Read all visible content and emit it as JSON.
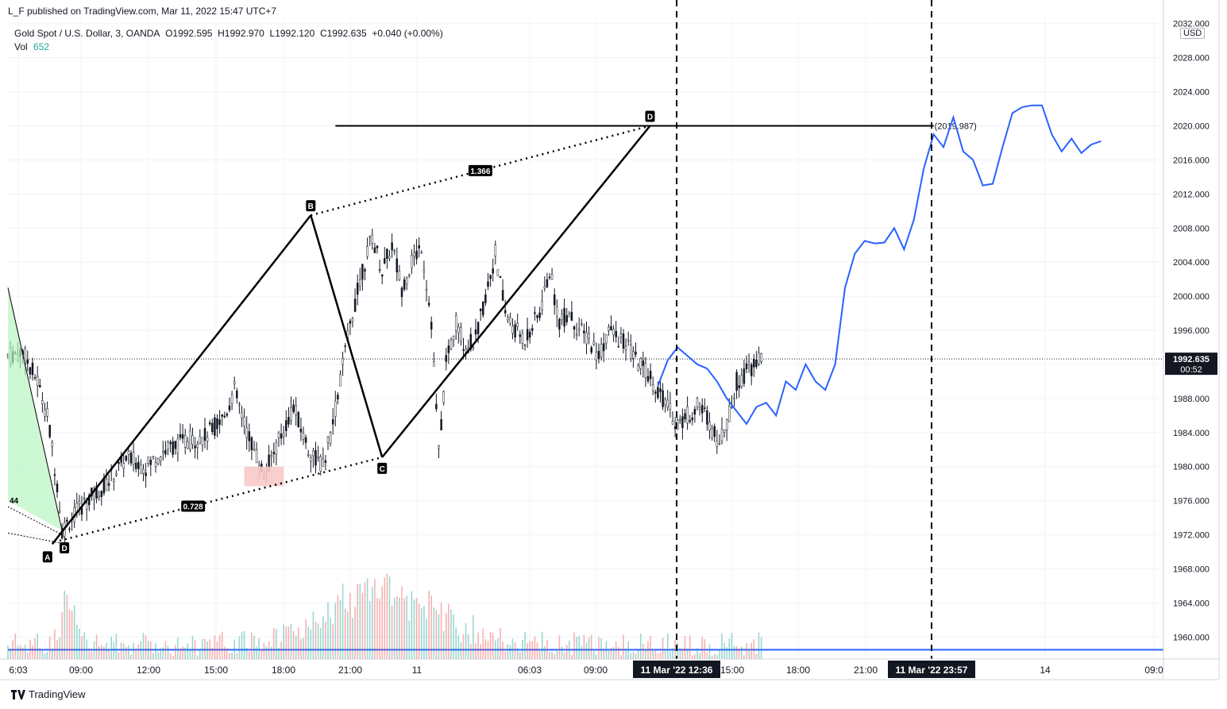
{
  "header": {
    "publish_line": "L_F published on TradingView.com, Mar 11, 2022 15:47 UTC+7",
    "symbol_line": "Gold Spot / U.S. Dollar, 3, OANDA",
    "open_label": "O1992.595",
    "high_label": "H1992.970",
    "low_label": "L1992.120",
    "close_label": "C1992.635",
    "change_label": "+0.040 (+0.00%)",
    "vol_label": "Vol",
    "vol_value": "652"
  },
  "currency_badge": "USD",
  "footer": {
    "brand": "TradingView",
    "logo_icon": "tradingview-logo-icon"
  },
  "colors": {
    "up": "#26a69a",
    "down": "#ef5350",
    "forecast_line": "#2962ff",
    "pattern": "#000000",
    "price_badge": "#131722"
  },
  "chart_data": {
    "type": "line",
    "title": "Gold Spot / U.S. Dollar, 3, OANDA",
    "y_axis": {
      "range": [
        1956,
        2036
      ],
      "ticks": [
        1960,
        1964,
        1968,
        1972,
        1976,
        1980,
        1984,
        1988,
        1992,
        1996,
        2000,
        2004,
        2008,
        2012,
        2016,
        2020,
        2024,
        2028,
        2032
      ],
      "tick_labels": [
        "1960.000",
        "1964.000",
        "1968.000",
        "1972.000",
        "1976.000",
        "1980.000",
        "1984.000",
        "1988.000",
        "1992.000",
        "1996.000",
        "2000.000",
        "2004.000",
        "2008.000",
        "2012.000",
        "2016.000",
        "2020.000",
        "2024.000",
        "2028.000",
        "2032.000"
      ],
      "current_price_label": "1992.635",
      "countdown_label": "00:52"
    },
    "x_axis": {
      "tick_labels": [
        "6:03",
        "09:00",
        "12:00",
        "15:00",
        "18:00",
        "21:00",
        "11",
        "06:03",
        "09:00",
        "15:00",
        "18:00",
        "21:00",
        "14",
        "09:0"
      ],
      "highlight_labels": [
        "11 Mar '22   12:36",
        "11 Mar '22   23:57"
      ]
    },
    "price_series": {
      "name": "Gold Spot / U.S. Dollar",
      "approx_path": [
        [
          0,
          1993
        ],
        [
          3,
          1993.5
        ],
        [
          6,
          1990
        ],
        [
          8,
          1986
        ],
        [
          10,
          1978
        ],
        [
          11,
          1972.5
        ],
        [
          13,
          1974
        ],
        [
          16,
          1976
        ],
        [
          20,
          1978
        ],
        [
          24,
          1981
        ],
        [
          28,
          1980
        ],
        [
          32,
          1982
        ],
        [
          36,
          1983
        ],
        [
          40,
          1983.5
        ],
        [
          44,
          1986
        ],
        [
          46,
          1989
        ],
        [
          48,
          1985
        ],
        [
          52,
          1979
        ],
        [
          55,
          1983
        ],
        [
          58,
          1987
        ],
        [
          61,
          1982
        ],
        [
          64,
          1980
        ],
        [
          66,
          1985
        ],
        [
          68,
          1992
        ],
        [
          70,
          1998
        ],
        [
          72,
          2003
        ],
        [
          74,
          2007
        ],
        [
          76,
          2003
        ],
        [
          78,
          2006
        ],
        [
          80,
          2001
        ],
        [
          82,
          2004
        ],
        [
          84,
          2006
        ],
        [
          86,
          1997
        ],
        [
          87.5,
          1981.5
        ],
        [
          89,
          1992
        ],
        [
          91,
          1997
        ],
        [
          93,
          1994
        ],
        [
          95,
          1995
        ],
        [
          97,
          2000
        ],
        [
          99,
          2005
        ],
        [
          101,
          1998
        ],
        [
          103,
          1996
        ],
        [
          105,
          1995
        ],
        [
          108,
          1998
        ],
        [
          110,
          2003
        ],
        [
          112,
          1997
        ],
        [
          114,
          1998
        ],
        [
          116,
          1996
        ],
        [
          118,
          1995
        ],
        [
          120,
          1993
        ],
        [
          122,
          1996
        ],
        [
          124,
          1995
        ],
        [
          126,
          1994
        ],
        [
          128,
          1992
        ],
        [
          130,
          1991
        ],
        [
          132,
          1989
        ],
        [
          134,
          1987
        ],
        [
          136,
          1985
        ],
        [
          138,
          1986
        ],
        [
          140,
          1987
        ],
        [
          142,
          1986
        ],
        [
          144,
          1983
        ],
        [
          146,
          1985
        ],
        [
          148,
          1990
        ],
        [
          150,
          1991
        ],
        [
          152,
          1992.5
        ],
        [
          153,
          1992.6
        ]
      ]
    },
    "volume_series": {
      "name": "Vol",
      "last_value": 652
    },
    "forecast_series": {
      "name": "forecast",
      "values": [
        [
          132,
          1989.5
        ],
        [
          134,
          1992.5
        ],
        [
          136,
          1994
        ],
        [
          138,
          1993
        ],
        [
          140,
          1992
        ],
        [
          142,
          1991.5
        ],
        [
          144,
          1990
        ],
        [
          146,
          1988
        ],
        [
          148,
          1986.5
        ],
        [
          150,
          1985
        ],
        [
          152,
          1987
        ],
        [
          154,
          1987.5
        ],
        [
          156,
          1986
        ],
        [
          158,
          1990
        ],
        [
          160,
          1989
        ],
        [
          162,
          1992
        ],
        [
          164,
          1990
        ],
        [
          166,
          1989
        ],
        [
          168,
          1992
        ],
        [
          170,
          2001
        ],
        [
          172,
          2005
        ],
        [
          174,
          2006.5
        ],
        [
          176,
          2006.2
        ],
        [
          178,
          2006.3
        ],
        [
          180,
          2008
        ],
        [
          182,
          2005.5
        ],
        [
          184,
          2009
        ],
        [
          186,
          2015
        ],
        [
          188,
          2019
        ],
        [
          190,
          2017.5
        ],
        [
          192,
          2021
        ],
        [
          194,
          2017
        ],
        [
          196,
          2016
        ],
        [
          198,
          2013
        ],
        [
          200,
          2013.2
        ],
        [
          202,
          2017.5
        ],
        [
          204,
          2021.5
        ],
        [
          206,
          2022.2
        ],
        [
          208,
          2022.4
        ],
        [
          210,
          2022.4
        ],
        [
          212,
          2019
        ],
        [
          214,
          2017
        ],
        [
          216,
          2018.5
        ],
        [
          218,
          2016.8
        ],
        [
          220,
          2017.8
        ],
        [
          222,
          2018.2
        ]
      ]
    },
    "pattern": {
      "type": "XABCD harmonic",
      "points": [
        {
          "label": "A",
          "price": 1970.9
        },
        {
          "label": "D",
          "price": 1971.5
        },
        {
          "label": "B",
          "price": 2009.5
        },
        {
          "label": "C",
          "price": 1981.1
        },
        {
          "label": "D",
          "price": 2020
        }
      ],
      "ratio_labels": [
        "1.366",
        "0.728"
      ],
      "target_label": "(2019.987)",
      "left_edge_label": "44",
      "resistance_level": 2020,
      "support_level": 1958.5
    },
    "grid": true,
    "legend": "top-left"
  }
}
